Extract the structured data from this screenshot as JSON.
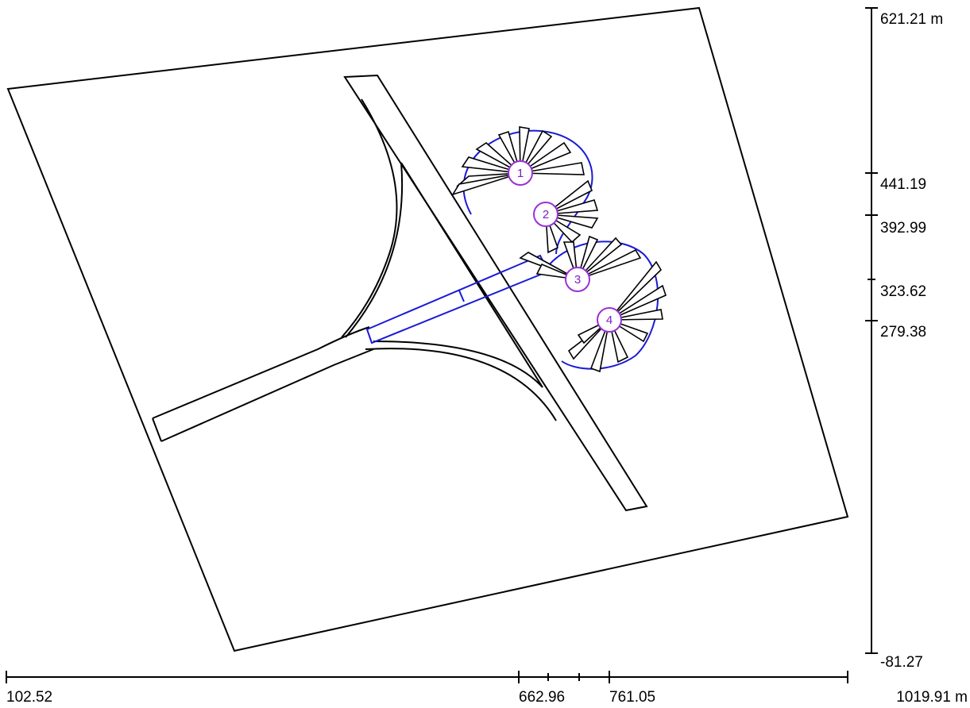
{
  "x_axis": {
    "unit": "m",
    "min_label": "102.52",
    "max_label": "1019.91 m",
    "labels": [
      "662.96",
      "761.05"
    ]
  },
  "y_axis": {
    "unit": "m",
    "max_label": "621.21 m",
    "min_label": "-81.27",
    "labels": [
      "441.19",
      "392.99",
      "323.62",
      "279.38"
    ]
  },
  "waypoints": [
    "1",
    "2",
    "3",
    "4"
  ],
  "colors": {
    "outline": "#000000",
    "flight_path": "#1b1bd6",
    "waypoint": "#9b30d9"
  }
}
